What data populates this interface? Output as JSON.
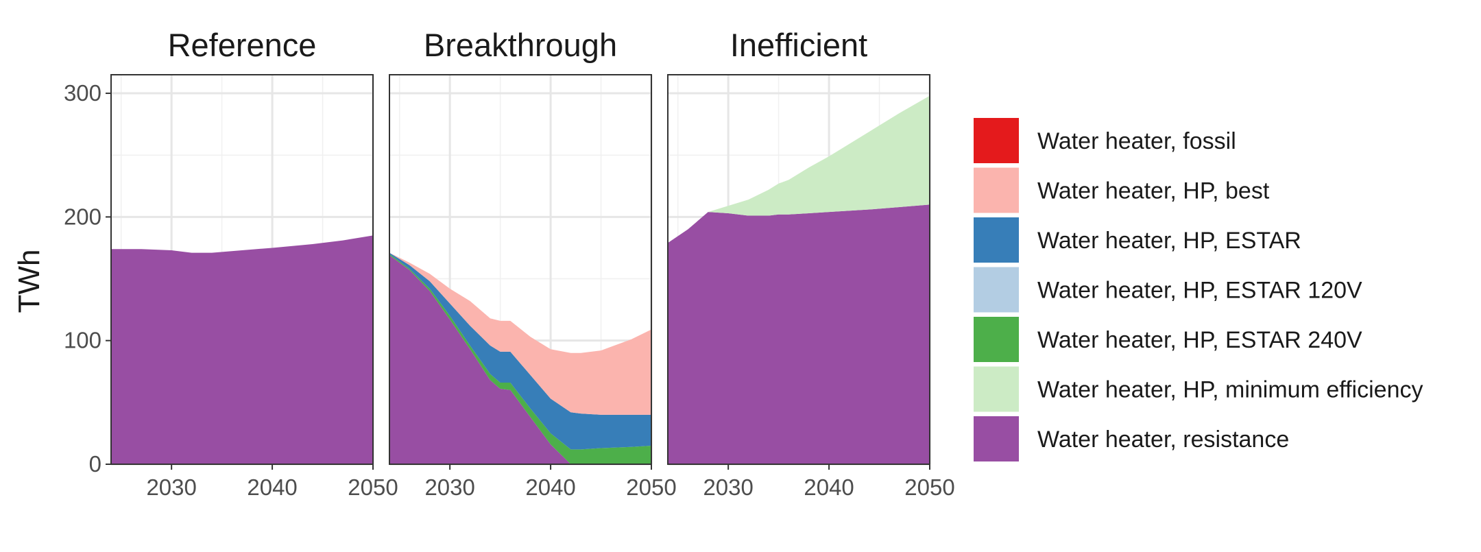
{
  "chart_data": {
    "type": "area",
    "ylabel": "TWh",
    "xlabel": "",
    "xlim": [
      2024,
      2050
    ],
    "ylim": [
      0,
      315
    ],
    "x_ticks": [
      2030,
      2040,
      2050
    ],
    "y_ticks": [
      0,
      100,
      200,
      300
    ],
    "grid": true,
    "legend_position": "right",
    "stack_order": [
      "Water heater, resistance",
      "Water heater, HP, minimum efficiency",
      "Water heater, HP, ESTAR 240V",
      "Water heater, HP, ESTAR 120V",
      "Water heater, HP, ESTAR",
      "Water heater, HP, best",
      "Water heater, fossil"
    ],
    "legend": [
      {
        "name": "Water heater, fossil",
        "color": "#E41A1C"
      },
      {
        "name": "Water heater, HP, best",
        "color": "#FBB4AE"
      },
      {
        "name": "Water heater, HP, ESTAR",
        "color": "#377EB8"
      },
      {
        "name": "Water heater, HP, ESTAR 120V",
        "color": "#B3CDE3"
      },
      {
        "name": "Water heater, HP, ESTAR 240V",
        "color": "#4DAF4A"
      },
      {
        "name": "Water heater, HP, minimum efficiency",
        "color": "#CCEBC5"
      },
      {
        "name": "Water heater, resistance",
        "color": "#984EA3"
      }
    ],
    "facets": [
      {
        "title": "Reference",
        "x": [
          2024,
          2027,
          2030,
          2032,
          2034,
          2037,
          2040,
          2044,
          2047,
          2050
        ],
        "series": [
          {
            "name": "Water heater, resistance",
            "values": [
              174,
              174,
              173,
              171,
              171,
              173,
              175,
              178,
              181,
              185
            ]
          }
        ]
      },
      {
        "title": "Breakthrough",
        "x": [
          2024,
          2026,
          2028,
          2030,
          2032,
          2034,
          2035,
          2036,
          2038,
          2040,
          2042,
          2043,
          2045,
          2048,
          2050
        ],
        "series": [
          {
            "name": "Water heater, resistance",
            "values": [
              169,
              157,
              140,
              117,
              93,
              68,
              61,
              60,
              38,
              16,
              0,
              0,
              0,
              0,
              0
            ]
          },
          {
            "name": "Water heater, HP, ESTAR 240V",
            "values": [
              1,
              1,
              2,
              3,
              3,
              5,
              5,
              6,
              7,
              9,
              12,
              12,
              13,
              14,
              15
            ]
          },
          {
            "name": "Water heater, HP, ESTAR 120V",
            "values": [
              0,
              0,
              0,
              0,
              0,
              0,
              0,
              0,
              0,
              0,
              0,
              0,
              0,
              0,
              0
            ]
          },
          {
            "name": "Water heater, HP, ESTAR",
            "values": [
              1,
              3,
              6,
              10,
              16,
              23,
              25,
              25,
              27,
              28,
              30,
              29,
              27,
              26,
              25
            ]
          },
          {
            "name": "Water heater, HP, best",
            "values": [
              0,
              2,
              6,
              12,
              20,
              22,
              25,
              25,
              31,
              40,
              48,
              49,
              52,
              61,
              69
            ]
          },
          {
            "name": "Water heater, fossil",
            "values": [
              0,
              0,
              0,
              0,
              0,
              0,
              0,
              0,
              0,
              0,
              0,
              0,
              0,
              0,
              0
            ]
          }
        ]
      },
      {
        "title": "Inefficient",
        "x": [
          2024,
          2026,
          2028,
          2030,
          2032,
          2034,
          2035,
          2036,
          2038,
          2040,
          2044,
          2047,
          2050
        ],
        "series": [
          {
            "name": "Water heater, resistance",
            "values": [
              179,
              190,
              204,
              203,
              201,
              201,
              202,
              202,
              203,
              204,
              206,
              208,
              210
            ]
          },
          {
            "name": "Water heater, HP, minimum efficiency",
            "values": [
              0,
              0,
              0,
              6,
              13,
              21,
              25,
              28,
              37,
              45,
              63,
              76,
              88
            ]
          }
        ]
      }
    ]
  }
}
